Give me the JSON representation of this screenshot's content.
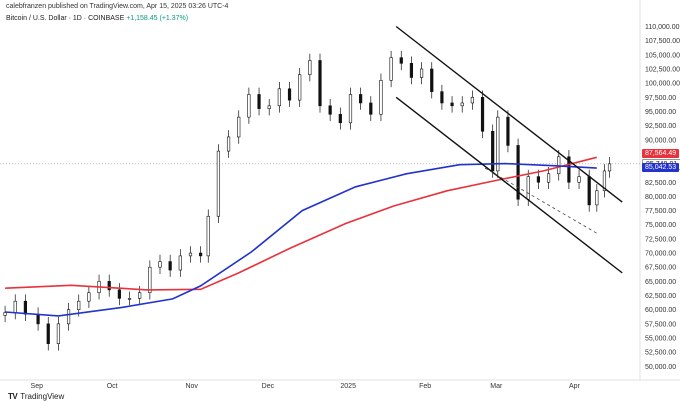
{
  "header": {
    "published": "calebfranzen published on TradingView.com, Apr 15, 2025 03:26 UTC-4"
  },
  "legend": {
    "symbol": "Bitcoin / U.S. Dollar · 1D · COINBASE",
    "change": "+1,158.45 (+1.37%)"
  },
  "price_tags": [
    {
      "label": "87,564.49",
      "color": "#e8323c",
      "value": 87564.49
    },
    {
      "label": "85,748.81",
      "color": "#ffffff",
      "value": 85748.81
    },
    {
      "label": "85,042.53",
      "color": "#2233cc",
      "value": 85042.53
    }
  ],
  "footer": {
    "brand": "TradingView"
  },
  "chart_data": {
    "type": "line",
    "yticks": [
      "110,000.00",
      "107,500.00",
      "105,000.00",
      "102,500.00",
      "100,000.00",
      "97,500.00",
      "95,000.00",
      "92,500.00",
      "90,000.00",
      "87,500.00",
      "85,000.00",
      "82,500.00",
      "80,000.00",
      "77,500.00",
      "75,000.00",
      "72,500.00",
      "70,000.00",
      "67,500.00",
      "65,000.00",
      "62,500.00",
      "60,000.00",
      "57,500.00",
      "55,000.00",
      "52,500.00",
      "50,000.00"
    ],
    "ylim": [
      49000,
      111500
    ],
    "xticks": [
      "Sep",
      "Oct",
      "Nov",
      "Dec",
      "2025",
      "Feb",
      "Mar",
      "Apr"
    ],
    "series": [
      {
        "name": "",
        "color": "#e8323c",
        "x": [
          "2024-08-20",
          "2024-09-15",
          "2024-10-15",
          "2024-11-05",
          "2024-11-20",
          "2024-12-10",
          "2025-01-01",
          "2025-01-20",
          "2025-02-10",
          "2025-03-01",
          "2025-03-20",
          "2025-04-10"
        ],
        "values": [
          63800,
          64300,
          63500,
          63600,
          66500,
          70800,
          75200,
          78300,
          81000,
          82800,
          84500,
          86900
        ]
      },
      {
        "name": "",
        "color": "#2233cc",
        "x": [
          "2024-08-20",
          "2024-09-10",
          "2024-10-05",
          "2024-10-25",
          "2024-11-05",
          "2024-11-25",
          "2024-12-15",
          "2025-01-05",
          "2025-01-25",
          "2025-02-15",
          "2025-03-05",
          "2025-03-25",
          "2025-04-10"
        ],
        "values": [
          59600,
          58900,
          60400,
          61900,
          64200,
          70200,
          77500,
          81700,
          84000,
          85600,
          85800,
          85400,
          85000
        ]
      }
    ],
    "close": [
      [
        "2024-08-20",
        59500
      ],
      [
        "2024-08-24",
        61500
      ],
      [
        "2024-08-28",
        59200
      ],
      [
        "2024-09-02",
        57500
      ],
      [
        "2024-09-06",
        54000
      ],
      [
        "2024-09-10",
        57500
      ],
      [
        "2024-09-14",
        60000
      ],
      [
        "2024-09-18",
        61500
      ],
      [
        "2024-09-22",
        63000
      ],
      [
        "2024-09-26",
        65000
      ],
      [
        "2024-09-30",
        63500
      ],
      [
        "2024-10-04",
        62000
      ],
      [
        "2024-10-08",
        62000
      ],
      [
        "2024-10-12",
        63000
      ],
      [
        "2024-10-16",
        67500
      ],
      [
        "2024-10-20",
        68500
      ],
      [
        "2024-10-24",
        67000
      ],
      [
        "2024-10-28",
        69500
      ],
      [
        "2024-11-01",
        70000
      ],
      [
        "2024-11-05",
        69500
      ],
      [
        "2024-11-08",
        76500
      ],
      [
        "2024-11-12",
        88000
      ],
      [
        "2024-11-16",
        90500
      ],
      [
        "2024-11-20",
        94000
      ],
      [
        "2024-11-24",
        98000
      ],
      [
        "2024-11-28",
        95500
      ],
      [
        "2024-12-02",
        96000
      ],
      [
        "2024-12-06",
        99000
      ],
      [
        "2024-12-10",
        97000
      ],
      [
        "2024-12-14",
        101500
      ],
      [
        "2024-12-18",
        104000
      ],
      [
        "2024-12-22",
        96000
      ],
      [
        "2024-12-26",
        94500
      ],
      [
        "2024-12-30",
        93000
      ],
      [
        "2025-01-03",
        98000
      ],
      [
        "2025-01-07",
        96500
      ],
      [
        "2025-01-11",
        94500
      ],
      [
        "2025-01-15",
        100500
      ],
      [
        "2025-01-19",
        104500
      ],
      [
        "2025-01-23",
        103500
      ],
      [
        "2025-01-27",
        101000
      ],
      [
        "2025-01-31",
        102500
      ],
      [
        "2025-02-04",
        98500
      ],
      [
        "2025-02-08",
        96500
      ],
      [
        "2025-02-12",
        96000
      ],
      [
        "2025-02-16",
        96500
      ],
      [
        "2025-02-20",
        97500
      ],
      [
        "2025-02-24",
        91500
      ],
      [
        "2025-02-28",
        84500
      ],
      [
        "2025-03-02",
        94000
      ],
      [
        "2025-03-06",
        89000
      ],
      [
        "2025-03-10",
        79500
      ],
      [
        "2025-03-14",
        83500
      ],
      [
        "2025-03-18",
        82500
      ],
      [
        "2025-03-22",
        84000
      ],
      [
        "2025-03-26",
        87000
      ],
      [
        "2025-03-30",
        82500
      ],
      [
        "2025-04-03",
        83500
      ],
      [
        "2025-04-07",
        78500
      ],
      [
        "2025-04-10",
        81000
      ],
      [
        "2025-04-13",
        84500
      ],
      [
        "2025-04-15",
        85750
      ]
    ],
    "channel": {
      "upper": [
        [
          "2025-01-21",
          110000
        ],
        [
          "2025-04-20",
          79000
        ]
      ],
      "lower": [
        [
          "2025-01-21",
          97500
        ],
        [
          "2025-04-20",
          66500
        ]
      ],
      "middle": [
        [
          "2025-02-25",
          85000
        ],
        [
          "2025-04-10",
          73500
        ]
      ]
    },
    "current_price": 85748.81
  }
}
